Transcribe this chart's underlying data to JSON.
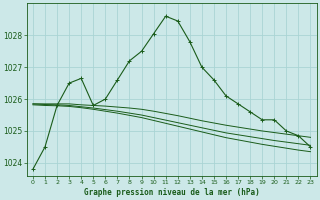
{
  "title": "Graphe pression niveau de la mer (hPa)",
  "background_color": "#cce8e8",
  "grid_color": "#aad4d4",
  "line_color": "#1a5c1a",
  "xlim": [
    -0.5,
    23.5
  ],
  "ylim": [
    1023.6,
    1029.0
  ],
  "yticks": [
    1024,
    1025,
    1026,
    1027,
    1028
  ],
  "xticks": [
    0,
    1,
    2,
    3,
    4,
    5,
    6,
    7,
    8,
    9,
    10,
    11,
    12,
    13,
    14,
    15,
    16,
    17,
    18,
    19,
    20,
    21,
    22,
    23
  ],
  "series": [
    {
      "x": [
        0,
        1,
        2,
        3,
        4,
        5,
        6,
        7,
        8,
        9,
        10,
        11,
        12,
        13,
        14,
        15,
        16,
        17,
        18,
        19,
        20,
        21,
        22,
        23
      ],
      "y": [
        1023.8,
        1024.5,
        1025.8,
        1026.5,
        1026.65,
        1025.8,
        1026.0,
        1026.6,
        1027.2,
        1027.5,
        1028.05,
        1028.6,
        1028.45,
        1027.8,
        1027.0,
        1026.6,
        1026.1,
        1025.85,
        1025.6,
        1025.35,
        1025.35,
        1025.0,
        1024.85,
        1024.5
      ],
      "marker": "+"
    },
    {
      "x": [
        0,
        1,
        2,
        3,
        4,
        5,
        6,
        7,
        8,
        9,
        10,
        11,
        12,
        13,
        14,
        15,
        16,
        17,
        18,
        19,
        20,
        21,
        22,
        23
      ],
      "y": [
        1025.85,
        1025.85,
        1025.85,
        1025.85,
        1025.82,
        1025.8,
        1025.78,
        1025.75,
        1025.72,
        1025.68,
        1025.62,
        1025.55,
        1025.48,
        1025.4,
        1025.32,
        1025.25,
        1025.18,
        1025.12,
        1025.06,
        1025.0,
        1024.95,
        1024.9,
        1024.85,
        1024.8
      ],
      "marker": null
    },
    {
      "x": [
        0,
        1,
        2,
        3,
        4,
        5,
        6,
        7,
        8,
        9,
        10,
        11,
        12,
        13,
        14,
        15,
        16,
        17,
        18,
        19,
        20,
        21,
        22,
        23
      ],
      "y": [
        1025.85,
        1025.83,
        1025.82,
        1025.8,
        1025.76,
        1025.72,
        1025.67,
        1025.62,
        1025.56,
        1025.5,
        1025.42,
        1025.34,
        1025.26,
        1025.18,
        1025.1,
        1025.02,
        1024.94,
        1024.88,
        1024.82,
        1024.76,
        1024.7,
        1024.65,
        1024.6,
        1024.55
      ],
      "marker": null
    },
    {
      "x": [
        0,
        1,
        2,
        3,
        4,
        5,
        6,
        7,
        8,
        9,
        10,
        11,
        12,
        13,
        14,
        15,
        16,
        17,
        18,
        19,
        20,
        21,
        22,
        23
      ],
      "y": [
        1025.82,
        1025.8,
        1025.79,
        1025.77,
        1025.73,
        1025.68,
        1025.62,
        1025.56,
        1025.49,
        1025.42,
        1025.33,
        1025.24,
        1025.15,
        1025.06,
        1024.97,
        1024.88,
        1024.79,
        1024.72,
        1024.65,
        1024.58,
        1024.52,
        1024.46,
        1024.4,
        1024.35
      ],
      "marker": null
    }
  ]
}
